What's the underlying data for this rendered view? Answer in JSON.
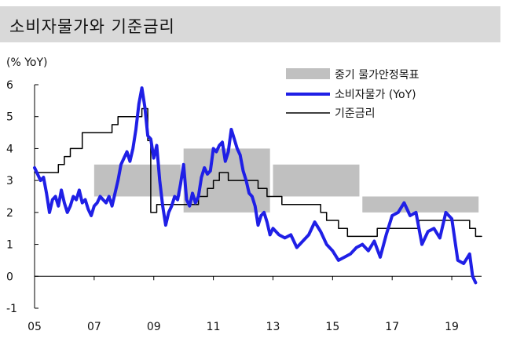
{
  "chart_data": {
    "type": "line",
    "title": "소비자물가와 기준금리",
    "ylabel": "(% YoY)",
    "ylim": [
      -1,
      6
    ],
    "yticks": [
      -1,
      0,
      1,
      2,
      3,
      4,
      5,
      6
    ],
    "xlim": [
      2005.0,
      2020.0
    ],
    "xticks": [
      2005,
      2007,
      2009,
      2011,
      2013,
      2015,
      2017,
      2019
    ],
    "xticklabels": [
      "05",
      "07",
      "09",
      "11",
      "13",
      "15",
      "17",
      "19"
    ],
    "grid": false,
    "legend_position": "top-right",
    "target_bands": {
      "name": "중기 물가안정목표",
      "color": "#c0c0c0",
      "bands": [
        {
          "start": 2007.0,
          "end": 2009.9,
          "low": 2.5,
          "high": 3.5
        },
        {
          "start": 2010.0,
          "end": 2012.9,
          "low": 2.0,
          "high": 4.0
        },
        {
          "start": 2013.0,
          "end": 2015.9,
          "low": 2.5,
          "high": 3.5
        },
        {
          "start": 2016.0,
          "end": 2019.9,
          "low": 2.0,
          "high": 2.5
        }
      ]
    },
    "series": [
      {
        "name": "소비자물가 (YoY)",
        "color": "#1f1fe6",
        "x": [
          2005.0,
          2005.1,
          2005.2,
          2005.3,
          2005.4,
          2005.5,
          2005.6,
          2005.7,
          2005.8,
          2005.9,
          2006.0,
          2006.1,
          2006.2,
          2006.3,
          2006.4,
          2006.5,
          2006.6,
          2006.7,
          2006.8,
          2006.9,
          2007.0,
          2007.1,
          2007.2,
          2007.3,
          2007.4,
          2007.5,
          2007.6,
          2007.7,
          2007.8,
          2007.9,
          2008.0,
          2008.1,
          2008.2,
          2008.3,
          2008.4,
          2008.5,
          2008.6,
          2008.7,
          2008.8,
          2008.9,
          2009.0,
          2009.1,
          2009.2,
          2009.3,
          2009.4,
          2009.5,
          2009.6,
          2009.7,
          2009.8,
          2009.9,
          2010.0,
          2010.1,
          2010.2,
          2010.3,
          2010.4,
          2010.5,
          2010.6,
          2010.7,
          2010.8,
          2010.9,
          2011.0,
          2011.1,
          2011.2,
          2011.3,
          2011.4,
          2011.5,
          2011.6,
          2011.7,
          2011.8,
          2011.9,
          2012.0,
          2012.1,
          2012.2,
          2012.3,
          2012.4,
          2012.5,
          2012.6,
          2012.7,
          2012.8,
          2012.9,
          2013.0,
          2013.2,
          2013.4,
          2013.6,
          2013.8,
          2014.0,
          2014.2,
          2014.4,
          2014.6,
          2014.8,
          2015.0,
          2015.2,
          2015.4,
          2015.6,
          2015.8,
          2016.0,
          2016.2,
          2016.4,
          2016.6,
          2016.8,
          2017.0,
          2017.2,
          2017.4,
          2017.6,
          2017.8,
          2018.0,
          2018.2,
          2018.4,
          2018.6,
          2018.8,
          2019.0,
          2019.2,
          2019.4,
          2019.6,
          2019.7,
          2019.8
        ],
        "values": [
          3.4,
          3.2,
          3.0,
          3.1,
          2.6,
          2.0,
          2.4,
          2.5,
          2.2,
          2.7,
          2.3,
          2.0,
          2.2,
          2.5,
          2.4,
          2.7,
          2.3,
          2.4,
          2.1,
          1.9,
          2.2,
          2.3,
          2.5,
          2.4,
          2.3,
          2.5,
          2.2,
          2.6,
          3.0,
          3.5,
          3.7,
          3.9,
          3.6,
          4.0,
          4.6,
          5.4,
          5.9,
          5.3,
          4.4,
          4.3,
          3.7,
          4.1,
          3.0,
          2.2,
          1.6,
          2.0,
          2.2,
          2.5,
          2.4,
          2.9,
          3.5,
          2.4,
          2.2,
          2.6,
          2.3,
          2.5,
          3.1,
          3.4,
          3.2,
          3.3,
          4.0,
          3.9,
          4.1,
          4.2,
          3.6,
          3.9,
          4.6,
          4.3,
          4.0,
          3.8,
          3.3,
          3.0,
          2.6,
          2.5,
          2.2,
          1.6,
          1.9,
          2.0,
          1.7,
          1.3,
          1.5,
          1.3,
          1.2,
          1.3,
          0.9,
          1.1,
          1.3,
          1.7,
          1.4,
          1.0,
          0.8,
          0.5,
          0.6,
          0.7,
          0.9,
          1.0,
          0.8,
          1.1,
          0.6,
          1.3,
          1.9,
          2.0,
          2.3,
          1.9,
          2.0,
          1.0,
          1.4,
          1.5,
          1.2,
          2.0,
          1.8,
          0.5,
          0.4,
          0.7,
          0.0,
          -0.2
        ]
      },
      {
        "name": "기준금리",
        "color": "#000000",
        "x": [
          2005.0,
          2005.8,
          2005.8,
          2006.0,
          2006.0,
          2006.2,
          2006.2,
          2006.6,
          2006.6,
          2007.6,
          2007.6,
          2007.8,
          2007.8,
          2008.6,
          2008.6,
          2008.8,
          2008.8,
          2008.9,
          2008.9,
          2009.1,
          2009.1,
          2010.5,
          2010.5,
          2010.8,
          2010.8,
          2011.0,
          2011.0,
          2011.2,
          2011.2,
          2011.5,
          2011.5,
          2012.5,
          2012.5,
          2012.8,
          2012.8,
          2013.3,
          2013.3,
          2014.6,
          2014.6,
          2014.8,
          2014.8,
          2015.2,
          2015.2,
          2015.5,
          2015.5,
          2016.5,
          2016.5,
          2017.9,
          2017.9,
          2019.6,
          2019.6,
          2019.8,
          2019.8,
          2020.0
        ],
        "values": [
          3.25,
          3.25,
          3.5,
          3.5,
          3.75,
          3.75,
          4.0,
          4.0,
          4.5,
          4.5,
          4.75,
          4.75,
          5.0,
          5.0,
          5.25,
          5.25,
          4.25,
          4.25,
          2.0,
          2.0,
          2.25,
          2.25,
          2.5,
          2.5,
          2.75,
          2.75,
          3.0,
          3.0,
          3.25,
          3.25,
          3.0,
          3.0,
          2.75,
          2.75,
          2.5,
          2.5,
          2.25,
          2.25,
          2.0,
          2.0,
          1.75,
          1.75,
          1.5,
          1.5,
          1.25,
          1.25,
          1.5,
          1.5,
          1.75,
          1.75,
          1.5,
          1.5,
          1.25,
          1.25
        ]
      }
    ]
  }
}
